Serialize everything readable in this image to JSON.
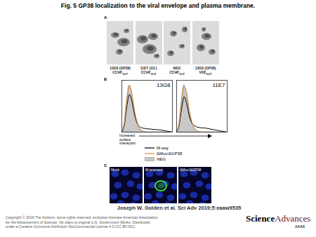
{
  "title": "Fig. 5 GP38 localization to the viral envelope and plasma membrane.",
  "panels": {
    "A": {
      "letter": "A",
      "images": [
        {
          "label": "13G8 (GP38)",
          "virus": "CCHF",
          "sub": "VLP"
        },
        {
          "label": "11E7 (GC)",
          "virus": "CCHF",
          "sub": "VLP"
        },
        {
          "label": "NEG",
          "virus": "CCHF",
          "sub": "VLP"
        },
        {
          "label": "13G8 (GP38)",
          "virus": "VEE",
          "sub": "VLP"
        }
      ]
    },
    "B": {
      "letter": "B"
    },
    "C": {
      "letter": "C",
      "images": [
        {
          "label": "Mock"
        },
        {
          "label": "M segment"
        },
        {
          "label": "ΔMuc/ΔGP38"
        }
      ]
    }
  },
  "chart_data": [
    {
      "type": "line",
      "title": "13G8",
      "x": [
        0,
        5,
        10,
        15,
        20,
        25,
        30,
        35,
        40,
        45,
        50,
        55,
        60,
        65,
        70,
        75,
        80,
        85,
        90,
        95,
        100
      ],
      "xlim": [
        0,
        100
      ],
      "ylim": [
        0,
        110
      ],
      "tick_labels": false,
      "legend": "bottom",
      "annotation": "Increased surface interaction",
      "series": [
        {
          "name": "M-seg",
          "color": "#000000",
          "type": "line",
          "values": [
            0,
            15,
            55,
            80,
            65,
            38,
            20,
            12,
            9,
            8,
            7,
            7,
            6,
            6,
            5,
            5,
            4,
            3,
            2,
            1,
            0
          ]
        },
        {
          "name": "ΔMuc/ΔGP38",
          "color": "#d98b3a",
          "type": "line",
          "values": [
            0,
            18,
            68,
            98,
            82,
            47,
            22,
            9,
            3,
            1,
            0,
            0,
            0,
            0,
            0,
            0,
            0,
            0,
            0,
            0,
            0
          ]
        },
        {
          "name": "NEG",
          "color": "#c8c8c8",
          "type": "area",
          "values": [
            0,
            20,
            70,
            100,
            80,
            45,
            20,
            8,
            3,
            1,
            0,
            0,
            0,
            0,
            0,
            0,
            0,
            0,
            0,
            0,
            0
          ]
        }
      ]
    },
    {
      "type": "line",
      "title": "11E7",
      "x": [
        0,
        5,
        10,
        15,
        20,
        25,
        30,
        35,
        40,
        45,
        50,
        55,
        60,
        65,
        70,
        75,
        80,
        85,
        90,
        95,
        100
      ],
      "xlim": [
        0,
        100
      ],
      "ylim": [
        0,
        110
      ],
      "tick_labels": false,
      "series": [
        {
          "name": "M-seg",
          "color": "#000000",
          "type": "line",
          "values": [
            0,
            14,
            50,
            75,
            60,
            35,
            20,
            14,
            11,
            10,
            9,
            9,
            8,
            7,
            6,
            5,
            4,
            3,
            2,
            1,
            0
          ]
        },
        {
          "name": "ΔMuc/ΔGP38",
          "color": "#d98b3a",
          "type": "line",
          "values": [
            0,
            17,
            66,
            97,
            83,
            48,
            23,
            9,
            3,
            1,
            0,
            0,
            0,
            0,
            0,
            0,
            0,
            0,
            0,
            0,
            0
          ]
        },
        {
          "name": "NEG",
          "color": "#c8c8c8",
          "type": "area",
          "values": [
            0,
            20,
            70,
            100,
            80,
            45,
            20,
            8,
            3,
            1,
            0,
            0,
            0,
            0,
            0,
            0,
            0,
            0,
            0,
            0,
            0
          ]
        }
      ]
    }
  ],
  "citation": "Joseph W. Golden et al. Sci Adv 2019;5:eaaw9535",
  "copyright": [
    "Copyright © 2019 The Authors, some rights reserved; exclusive licensee American Association",
    "for the Advancement of Science. No claim to original U.S. Government Works. Distributed",
    "under a Creative Commons Attribution NonCommercial License 4.0 (CC BY-NC)."
  ],
  "logo": {
    "parts": [
      "Science",
      "Advances"
    ],
    "sub": "AAAS"
  }
}
